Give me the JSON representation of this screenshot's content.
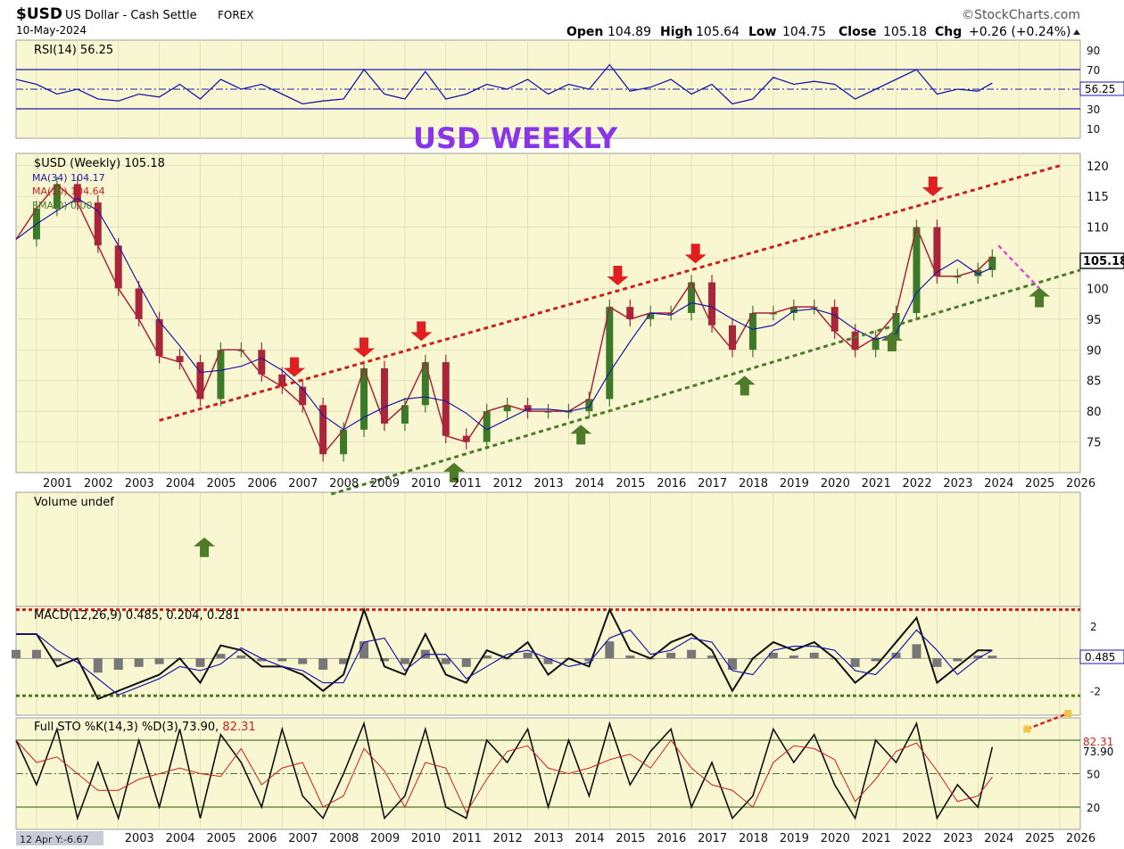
{
  "header": {
    "symbol": "$USD",
    "name": "US Dollar - Cash Settle",
    "exchange": "FOREX",
    "brand": "©StockCharts.com",
    "date": "10-May-2024",
    "open_label": "Open",
    "open": "104.89",
    "high_label": "High",
    "high": "105.64",
    "low_label": "Low",
    "low": "104.75",
    "close_label": "Close",
    "close": "105.18",
    "chg_label": "Chg",
    "chg": "+0.26 (+0.24%)"
  },
  "annotation_title": "USD WEEKLY",
  "footer_readout": "12 Apr Y:-6.67",
  "colors": {
    "panel_bg": "#f9f7d2",
    "grid": "#d9d9b5",
    "blue": "#1a1aa8",
    "red": "#cc1f1f",
    "green": "#4e7a2a",
    "purple": "#8a35e8",
    "magenta": "#e04ce0",
    "candle_up": "#3c7a2a",
    "candle_down": "#a8253a"
  },
  "chart_data": [
    {
      "type": "line",
      "panel": "rsi",
      "legend": "RSI(14) 56.25",
      "last_value": "56.25",
      "ylim": [
        0,
        100
      ],
      "y_ticks": [
        "90",
        "70",
        "50",
        "30",
        "10"
      ],
      "reference_lines": [
        70,
        50,
        30
      ],
      "x": [
        2000.5,
        2001,
        2001.5,
        2002,
        2002.5,
        2003,
        2003.5,
        2004,
        2004.5,
        2005,
        2005.5,
        2006,
        2006.5,
        2007,
        2007.5,
        2008,
        2008.5,
        2009,
        2009.5,
        2010,
        2010.5,
        2011,
        2011.5,
        2012,
        2012.5,
        2013,
        2013.5,
        2014,
        2014.5,
        2015,
        2015.5,
        2016,
        2016.5,
        2017,
        2017.5,
        2018,
        2018.5,
        2019,
        2019.5,
        2020,
        2020.5,
        2021,
        2021.5,
        2022,
        2022.5,
        2023,
        2023.5,
        2024,
        2024.35
      ],
      "values": [
        60,
        55,
        45,
        50,
        40,
        38,
        45,
        42,
        55,
        40,
        60,
        50,
        55,
        45,
        35,
        38,
        40,
        70,
        45,
        40,
        68,
        40,
        45,
        55,
        50,
        60,
        45,
        55,
        50,
        75,
        48,
        52,
        60,
        45,
        55,
        35,
        40,
        62,
        55,
        58,
        55,
        40,
        50,
        60,
        70,
        45,
        50,
        48,
        56.25
      ]
    },
    {
      "type": "candlestick",
      "panel": "price",
      "legend": "$USD (Weekly) 105.18",
      "last_value": "105.18",
      "ylim": [
        70,
        122
      ],
      "y_ticks": [
        "120",
        "115",
        "110",
        "105",
        "100",
        "95",
        "90",
        "85",
        "80",
        "75"
      ],
      "xlim": [
        2000.5,
        2026.5
      ],
      "x_ticks": [
        "2001",
        "2002",
        "2003",
        "2004",
        "2005",
        "2006",
        "2007",
        "2008",
        "2009",
        "2010",
        "2011",
        "2012",
        "2013",
        "2014",
        "2015",
        "2016",
        "2017",
        "2018",
        "2019",
        "2020",
        "2021",
        "2022",
        "2023",
        "2024",
        "2025",
        "2026"
      ],
      "x": [
        2000.5,
        2001,
        2001.5,
        2002,
        2002.5,
        2003,
        2003.5,
        2004,
        2004.5,
        2005,
        2005.5,
        2006,
        2006.5,
        2007,
        2007.5,
        2008,
        2008.5,
        2009,
        2009.5,
        2010,
        2010.5,
        2011,
        2011.5,
        2012,
        2012.5,
        2013,
        2013.5,
        2014,
        2014.5,
        2015,
        2015.5,
        2016,
        2016.5,
        2017,
        2017.5,
        2018,
        2018.5,
        2019,
        2019.5,
        2020,
        2020.5,
        2021,
        2021.5,
        2022,
        2022.5,
        2023,
        2023.5,
        2024,
        2024.35
      ],
      "values": [
        108,
        113,
        117,
        114,
        107,
        100,
        95,
        89,
        88,
        82,
        90,
        90,
        86,
        84,
        81,
        73,
        77,
        87,
        78,
        81,
        88,
        76,
        75,
        80,
        81,
        80,
        80,
        80,
        82,
        97,
        95,
        96,
        96,
        101,
        94,
        90,
        96,
        96,
        97,
        97,
        93,
        90,
        92,
        96,
        110,
        102,
        102,
        103,
        105.18
      ],
      "series": [
        {
          "name": "MA(34) 104.17"
        },
        {
          "name": "MA(10) 104.64"
        },
        {
          "name": "EMA(0) 0.00"
        }
      ],
      "channel_upper": {
        "from": [
          2004,
          78.5
        ],
        "to": [
          2026,
          120
        ]
      },
      "channel_lower": {
        "from": [
          2008.2,
          66.5
        ],
        "to": [
          2026.5,
          103
        ]
      },
      "projection": {
        "from": [
          2024.5,
          107
        ],
        "to": [
          2025.5,
          100
        ]
      },
      "markers_down_x": [
        2007.3,
        2009,
        2010.4,
        2015.2,
        2017.1,
        2022.9
      ],
      "markers_up_x": [
        2005.1,
        2011.2,
        2014.3,
        2018.3,
        2021.9,
        2025.5
      ]
    },
    {
      "type": "bar",
      "panel": "volume",
      "legend": "Volume undef"
    },
    {
      "type": "line",
      "panel": "macd",
      "legend": "MACD(12,26,9) 0.485, 0.204, 0.281",
      "last_value": "0.485",
      "ylim": [
        -3.5,
        3.2
      ],
      "y_ticks": [
        "2",
        "-2"
      ],
      "reference_lines": [
        3.0,
        -2.3
      ],
      "x": [
        2000.5,
        2001,
        2001.5,
        2002,
        2002.5,
        2003,
        2003.5,
        2004,
        2004.5,
        2005,
        2005.5,
        2006,
        2006.5,
        2007,
        2007.5,
        2008,
        2008.5,
        2009,
        2009.5,
        2010,
        2010.5,
        2011,
        2011.5,
        2012,
        2012.5,
        2013,
        2013.5,
        2014,
        2014.5,
        2015,
        2015.5,
        2016,
        2016.5,
        2017,
        2017.5,
        2018,
        2018.5,
        2019,
        2019.5,
        2020,
        2020.5,
        2021,
        2021.5,
        2022,
        2022.5,
        2023,
        2023.5,
        2024,
        2024.35
      ],
      "values": [
        1.5,
        1.5,
        -0.5,
        0,
        -2.5,
        -2,
        -1.5,
        -1,
        0,
        -1.5,
        0.8,
        0.5,
        -0.5,
        -0.5,
        -1,
        -2,
        -1,
        3,
        -0.5,
        -1,
        1.5,
        -1,
        -1.5,
        0.5,
        0,
        1,
        -1,
        0,
        -0.5,
        3,
        0.5,
        0,
        1,
        1.5,
        0.5,
        -2,
        0,
        1,
        0.5,
        1,
        0,
        -1.5,
        -0.5,
        1,
        2.5,
        -1.5,
        -0.5,
        0.5,
        0.485
      ]
    },
    {
      "type": "line",
      "panel": "stochastic",
      "legend_prefix": "Full STO %K(14,3) %D(3) 73.90,",
      "legend_value": "82.31",
      "k_value": "73.90",
      "d_value": "82.31",
      "ylim": [
        0,
        100
      ],
      "y_ticks": [
        "80",
        "50",
        "20"
      ],
      "x": [
        2000.5,
        2001,
        2001.5,
        2002,
        2002.5,
        2003,
        2003.5,
        2004,
        2004.5,
        2005,
        2005.5,
        2006,
        2006.5,
        2007,
        2007.5,
        2008,
        2008.5,
        2009,
        2009.5,
        2010,
        2010.5,
        2011,
        2011.5,
        2012,
        2012.5,
        2013,
        2013.5,
        2014,
        2014.5,
        2015,
        2015.5,
        2016,
        2016.5,
        2017,
        2017.5,
        2018,
        2018.5,
        2019,
        2019.5,
        2020,
        2020.5,
        2021,
        2021.5,
        2022,
        2022.5,
        2023,
        2023.5,
        2024,
        2024.35
      ],
      "values": [
        80,
        40,
        90,
        10,
        60,
        10,
        80,
        20,
        90,
        10,
        85,
        60,
        20,
        90,
        30,
        10,
        50,
        95,
        10,
        30,
        90,
        20,
        10,
        80,
        60,
        90,
        20,
        80,
        30,
        95,
        40,
        70,
        90,
        20,
        60,
        10,
        30,
        90,
        60,
        85,
        40,
        10,
        80,
        60,
        95,
        10,
        40,
        20,
        73.9
      ]
    }
  ]
}
